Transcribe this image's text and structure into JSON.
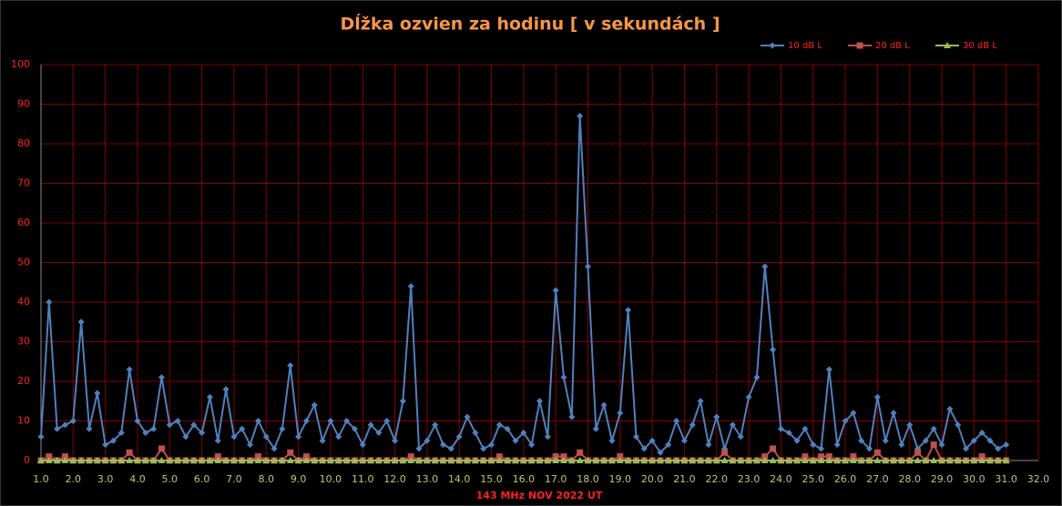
{
  "chart_data": {
    "type": "line",
    "title": "Dĺžka ozvien za hodinu [ v sekundách ]",
    "x_label": "143 MHz  NOV  2022  UT",
    "xlim": [
      1,
      32
    ],
    "ylim": [
      0,
      100
    ],
    "xticks": [
      {
        "value": 1,
        "label": "1.0"
      },
      {
        "value": 2,
        "label": "2.0"
      },
      {
        "value": 3,
        "label": "3.0"
      },
      {
        "value": 4,
        "label": "4.0"
      },
      {
        "value": 5,
        "label": "5.0"
      },
      {
        "value": 6,
        "label": "6.0"
      },
      {
        "value": 7,
        "label": "7.0"
      },
      {
        "value": 8,
        "label": "8.0"
      },
      {
        "value": 9,
        "label": "9.0"
      },
      {
        "value": 10,
        "label": "10.0"
      },
      {
        "value": 11,
        "label": "11.0"
      },
      {
        "value": 12,
        "label": "12.0"
      },
      {
        "value": 13,
        "label": "13.0"
      },
      {
        "value": 14,
        "label": "14.0"
      },
      {
        "value": 15,
        "label": "15.0"
      },
      {
        "value": 16,
        "label": "16.0"
      },
      {
        "value": 17,
        "label": "17.0"
      },
      {
        "value": 18,
        "label": "18.0"
      },
      {
        "value": 19,
        "label": "19.0"
      },
      {
        "value": 20,
        "label": "20.0"
      },
      {
        "value": 21,
        "label": "21.0"
      },
      {
        "value": 22,
        "label": "22.0"
      },
      {
        "value": 23,
        "label": "23.0"
      },
      {
        "value": 24,
        "label": "24.0"
      },
      {
        "value": 25,
        "label": "25.0"
      },
      {
        "value": 26,
        "label": "26.0"
      },
      {
        "value": 27,
        "label": "27.0"
      },
      {
        "value": 28,
        "label": "28.0"
      },
      {
        "value": 29,
        "label": "29.0"
      },
      {
        "value": 30,
        "label": "30.0"
      },
      {
        "value": 31,
        "label": "31.0"
      },
      {
        "value": 32,
        "label": "32.0"
      }
    ],
    "yticks": [
      0,
      10,
      20,
      30,
      40,
      50,
      60,
      70,
      80,
      90,
      100
    ],
    "grid": true,
    "legend": "top-right",
    "x": [
      1,
      1.25,
      1.5,
      1.75,
      2,
      2.25,
      2.5,
      2.75,
      3,
      3.25,
      3.5,
      3.75,
      4,
      4.25,
      4.5,
      4.75,
      5,
      5.25,
      5.5,
      5.75,
      6,
      6.25,
      6.5,
      6.75,
      7,
      7.25,
      7.5,
      7.75,
      8,
      8.25,
      8.5,
      8.75,
      9,
      9.25,
      9.5,
      9.75,
      10,
      10.25,
      10.5,
      10.75,
      11,
      11.25,
      11.5,
      11.75,
      12,
      12.25,
      12.5,
      12.75,
      13,
      13.25,
      13.5,
      13.75,
      14,
      14.25,
      14.5,
      14.75,
      15,
      15.25,
      15.5,
      15.75,
      16,
      16.25,
      16.5,
      16.75,
      17,
      17.25,
      17.5,
      17.75,
      18,
      18.25,
      18.5,
      18.75,
      19,
      19.25,
      19.5,
      19.75,
      20,
      20.25,
      20.5,
      20.75,
      21,
      21.25,
      21.5,
      21.75,
      22,
      22.25,
      22.5,
      22.75,
      23,
      23.25,
      23.5,
      23.75,
      24,
      24.25,
      24.5,
      24.75,
      25,
      25.25,
      25.5,
      25.75,
      26,
      26.25,
      26.5,
      26.75,
      27,
      27.25,
      27.5,
      27.75,
      28,
      28.25,
      28.5,
      28.75,
      29,
      29.25,
      29.5,
      29.75,
      30,
      30.25,
      30.5,
      30.75,
      31
    ],
    "series": [
      {
        "name": "10 dB L",
        "color": "#4f81bd",
        "marker": "diamond",
        "values": [
          6,
          40,
          8,
          9,
          10,
          35,
          8,
          17,
          4,
          5,
          7,
          23,
          10,
          7,
          8,
          21,
          9,
          10,
          6,
          9,
          7,
          16,
          5,
          18,
          6,
          8,
          4,
          10,
          6,
          3,
          8,
          24,
          6,
          10,
          14,
          5,
          10,
          6,
          10,
          8,
          4,
          9,
          7,
          10,
          5,
          15,
          44,
          3,
          5,
          9,
          4,
          3,
          6,
          11,
          7,
          3,
          4,
          9,
          8,
          5,
          7,
          4,
          15,
          6,
          43,
          21,
          11,
          87,
          49,
          8,
          14,
          5,
          12,
          38,
          6,
          3,
          5,
          2,
          4,
          10,
          5,
          9,
          15,
          4,
          11,
          3,
          9,
          6,
          16,
          21,
          49,
          28,
          8,
          7,
          5,
          8,
          4,
          3,
          23,
          4,
          10,
          12,
          5,
          3,
          16,
          5,
          12,
          4,
          9,
          3,
          5,
          8,
          4,
          13,
          9,
          3,
          5,
          7,
          5,
          3,
          4
        ]
      },
      {
        "name": "20 dB L",
        "color": "#c0504d",
        "marker": "square",
        "values": [
          0,
          1,
          0,
          1,
          0,
          0,
          0,
          0,
          0,
          0,
          0,
          2,
          0,
          0,
          0,
          3,
          0,
          0,
          0,
          0,
          0,
          0,
          1,
          0,
          0,
          0,
          0,
          1,
          0,
          0,
          0,
          2,
          0,
          1,
          0,
          0,
          0,
          0,
          0,
          0,
          0,
          0,
          0,
          0,
          0,
          0,
          1,
          0,
          0,
          0,
          0,
          0,
          0,
          0,
          0,
          0,
          0,
          1,
          0,
          0,
          0,
          0,
          0,
          0,
          1,
          1,
          0,
          2,
          0,
          0,
          0,
          0,
          1,
          0,
          0,
          0,
          0,
          0,
          0,
          0,
          0,
          0,
          0,
          0,
          0,
          2,
          0,
          0,
          0,
          0,
          1,
          3,
          0,
          0,
          0,
          1,
          0,
          1,
          1,
          0,
          0,
          1,
          0,
          0,
          2,
          0,
          0,
          0,
          0,
          2,
          0,
          4,
          0,
          0,
          0,
          0,
          0,
          1,
          0,
          0,
          0
        ]
      },
      {
        "name": "30 dB L",
        "color": "#9bbb59",
        "marker": "triangle",
        "values": [
          0,
          0,
          0,
          0,
          0,
          0,
          0,
          0,
          0,
          0,
          0,
          0,
          0,
          0,
          0,
          0,
          0,
          0,
          0,
          0,
          0,
          0,
          0,
          0,
          0,
          0,
          0,
          0,
          0,
          0,
          0,
          0,
          0,
          0,
          0,
          0,
          0,
          0,
          0,
          0,
          0,
          0,
          0,
          0,
          0,
          0,
          0,
          0,
          0,
          0,
          0,
          0,
          0,
          0,
          0,
          0,
          0,
          0,
          0,
          0,
          0,
          0,
          0,
          0,
          0,
          0,
          0,
          0,
          0,
          0,
          0,
          0,
          0,
          0,
          0,
          0,
          0,
          0,
          0,
          0,
          0,
          0,
          0,
          0,
          0,
          0,
          0,
          0,
          0,
          0,
          0,
          0,
          0,
          0,
          0,
          0,
          0,
          0,
          0,
          0,
          0,
          0,
          0,
          0,
          0,
          0,
          0,
          0,
          0,
          0,
          0,
          0,
          0,
          0,
          0,
          0,
          0,
          0,
          0,
          0,
          0
        ]
      }
    ]
  }
}
